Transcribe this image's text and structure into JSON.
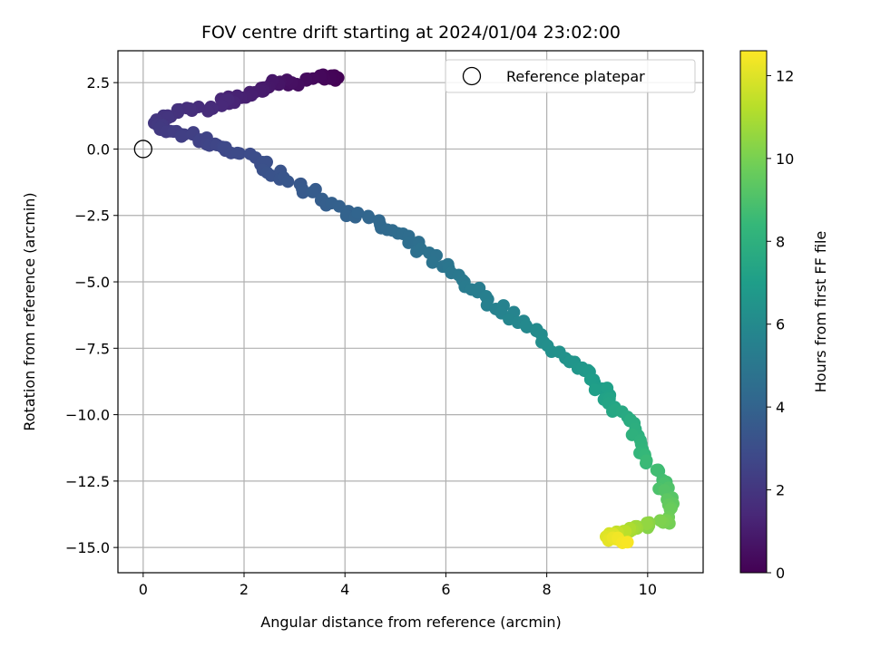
{
  "chart_data": {
    "type": "scatter",
    "title": "FOV centre drift starting at 2024/01/04 23:02:00",
    "xlabel": "Angular distance from reference (arcmin)",
    "ylabel": "Rotation from reference (arcmin)",
    "xlim": [
      -0.5,
      11.1
    ],
    "ylim": [
      -15.95,
      3.7
    ],
    "x_ticks": [
      0,
      2,
      4,
      6,
      8,
      10
    ],
    "x_tick_labels": [
      "0",
      "2",
      "4",
      "6",
      "8",
      "10"
    ],
    "y_ticks": [
      2.5,
      0,
      -2.5,
      -5,
      -7.5,
      -10,
      -12.5,
      -15
    ],
    "y_tick_labels": [
      "2.5",
      "0.0",
      "−2.5",
      "−5.0",
      "−7.5",
      "−10.0",
      "−12.5",
      "−15.0"
    ],
    "grid": true,
    "legend": {
      "position": "top-right",
      "label": "Reference platepar"
    },
    "reference_point": {
      "x": 0,
      "y": 0
    },
    "colorbar": {
      "label": "Hours from first FF file",
      "range": [
        0,
        12.6
      ],
      "ticks": [
        0,
        2,
        4,
        6,
        8,
        10,
        12
      ],
      "tick_labels": [
        "0",
        "2",
        "4",
        "6",
        "8",
        "10",
        "12"
      ],
      "colormap": [
        "#440154",
        "#482878",
        "#3e4989",
        "#31688e",
        "#26828e",
        "#1f9e89",
        "#35b779",
        "#6ece58",
        "#b5de2b",
        "#fde725"
      ]
    },
    "anchors": [
      {
        "x": 3.9,
        "y": 2.65,
        "t": 0.0
      },
      {
        "x": 3.55,
        "y": 2.75,
        "t": 0.2
      },
      {
        "x": 3.0,
        "y": 2.45,
        "t": 0.45
      },
      {
        "x": 2.6,
        "y": 2.55,
        "t": 0.7
      },
      {
        "x": 2.3,
        "y": 2.2,
        "t": 0.95
      },
      {
        "x": 1.8,
        "y": 1.9,
        "t": 1.2
      },
      {
        "x": 1.6,
        "y": 1.75,
        "t": 1.4
      },
      {
        "x": 1.2,
        "y": 1.5,
        "t": 1.6
      },
      {
        "x": 0.6,
        "y": 1.3,
        "t": 1.85
      },
      {
        "x": 0.2,
        "y": 0.8,
        "t": 2.1
      },
      {
        "x": 0.7,
        "y": 0.6,
        "t": 2.3
      },
      {
        "x": 1.2,
        "y": 0.3,
        "t": 2.55
      },
      {
        "x": 1.7,
        "y": 0.0,
        "t": 2.8
      },
      {
        "x": 2.4,
        "y": -0.6,
        "t": 3.1
      },
      {
        "x": 3.0,
        "y": -1.3,
        "t": 3.45
      },
      {
        "x": 3.7,
        "y": -2.0,
        "t": 3.8
      },
      {
        "x": 4.4,
        "y": -2.6,
        "t": 4.1
      },
      {
        "x": 5.1,
        "y": -3.3,
        "t": 4.45
      },
      {
        "x": 5.8,
        "y": -4.2,
        "t": 4.8
      },
      {
        "x": 6.4,
        "y": -5.1,
        "t": 5.2
      },
      {
        "x": 7.1,
        "y": -6.0,
        "t": 5.6
      },
      {
        "x": 7.7,
        "y": -6.8,
        "t": 6.0
      },
      {
        "x": 8.3,
        "y": -7.8,
        "t": 6.4
      },
      {
        "x": 8.8,
        "y": -8.5,
        "t": 6.8
      },
      {
        "x": 9.2,
        "y": -9.3,
        "t": 7.2
      },
      {
        "x": 9.6,
        "y": -10.2,
        "t": 7.7
      },
      {
        "x": 9.9,
        "y": -11.2,
        "t": 8.2
      },
      {
        "x": 10.2,
        "y": -12.2,
        "t": 8.7
      },
      {
        "x": 10.45,
        "y": -13.2,
        "t": 9.3
      },
      {
        "x": 10.35,
        "y": -14.0,
        "t": 9.9
      },
      {
        "x": 9.9,
        "y": -14.2,
        "t": 10.5
      },
      {
        "x": 9.5,
        "y": -14.4,
        "t": 11.2
      },
      {
        "x": 9.2,
        "y": -14.55,
        "t": 12.0
      },
      {
        "x": 9.6,
        "y": -14.8,
        "t": 12.5
      }
    ],
    "points_per_segment": 8,
    "scatter_seed": 7
  }
}
